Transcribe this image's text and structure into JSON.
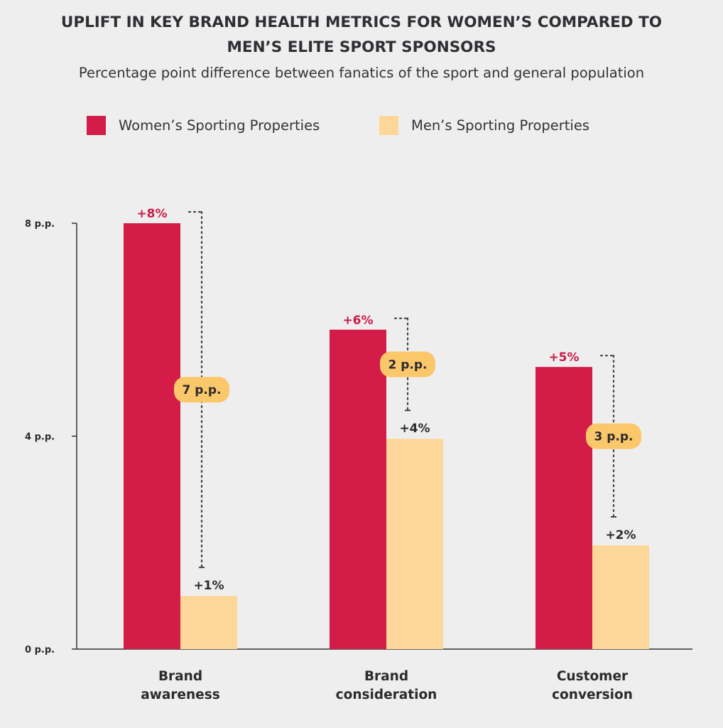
{
  "chart_data": {
    "type": "bar",
    "title": "UPLIFT IN KEY BRAND HEALTH METRICS FOR WOMEN’S COMPARED TO MEN’S ELITE SPORT SPONSORS",
    "title_lines": [
      "UPLIFT IN KEY BRAND HEALTH METRICS FOR WOMEN’S COMPARED TO",
      "MEN’S ELITE SPORT SPONSORS"
    ],
    "subtitle": "Percentage point difference between fanatics of the sport and general population",
    "categories": [
      {
        "lines": [
          "Brand",
          "awareness"
        ]
      },
      {
        "lines": [
          "Brand",
          "consideration"
        ]
      },
      {
        "lines": [
          "Customer",
          "conversion"
        ]
      }
    ],
    "series": [
      {
        "name": "Women’s Sporting Properties",
        "color": "#d31c47",
        "label_color": "#c91c48",
        "values": [
          8,
          6,
          5.3
        ],
        "labels": [
          "+8%",
          "+6%",
          "+5%"
        ]
      },
      {
        "name": "Men’s Sporting Properties",
        "color": "#fdd79a",
        "label_color": "#2b2b2b",
        "values": [
          1,
          3.95,
          1.95
        ],
        "labels": [
          "+1%",
          "+4%",
          "+2%"
        ]
      }
    ],
    "differences": [
      "7 p.p.",
      "2 p.p.",
      "3 p.p."
    ],
    "difference_color": "#fbc76b",
    "ylim": [
      0,
      8
    ],
    "yticks": [
      {
        "value": 0,
        "label": "0 p.p."
      },
      {
        "value": 4,
        "label": "4 p.p."
      },
      {
        "value": 8,
        "label": "8 p.p."
      }
    ],
    "grid": false,
    "legend": "top"
  }
}
